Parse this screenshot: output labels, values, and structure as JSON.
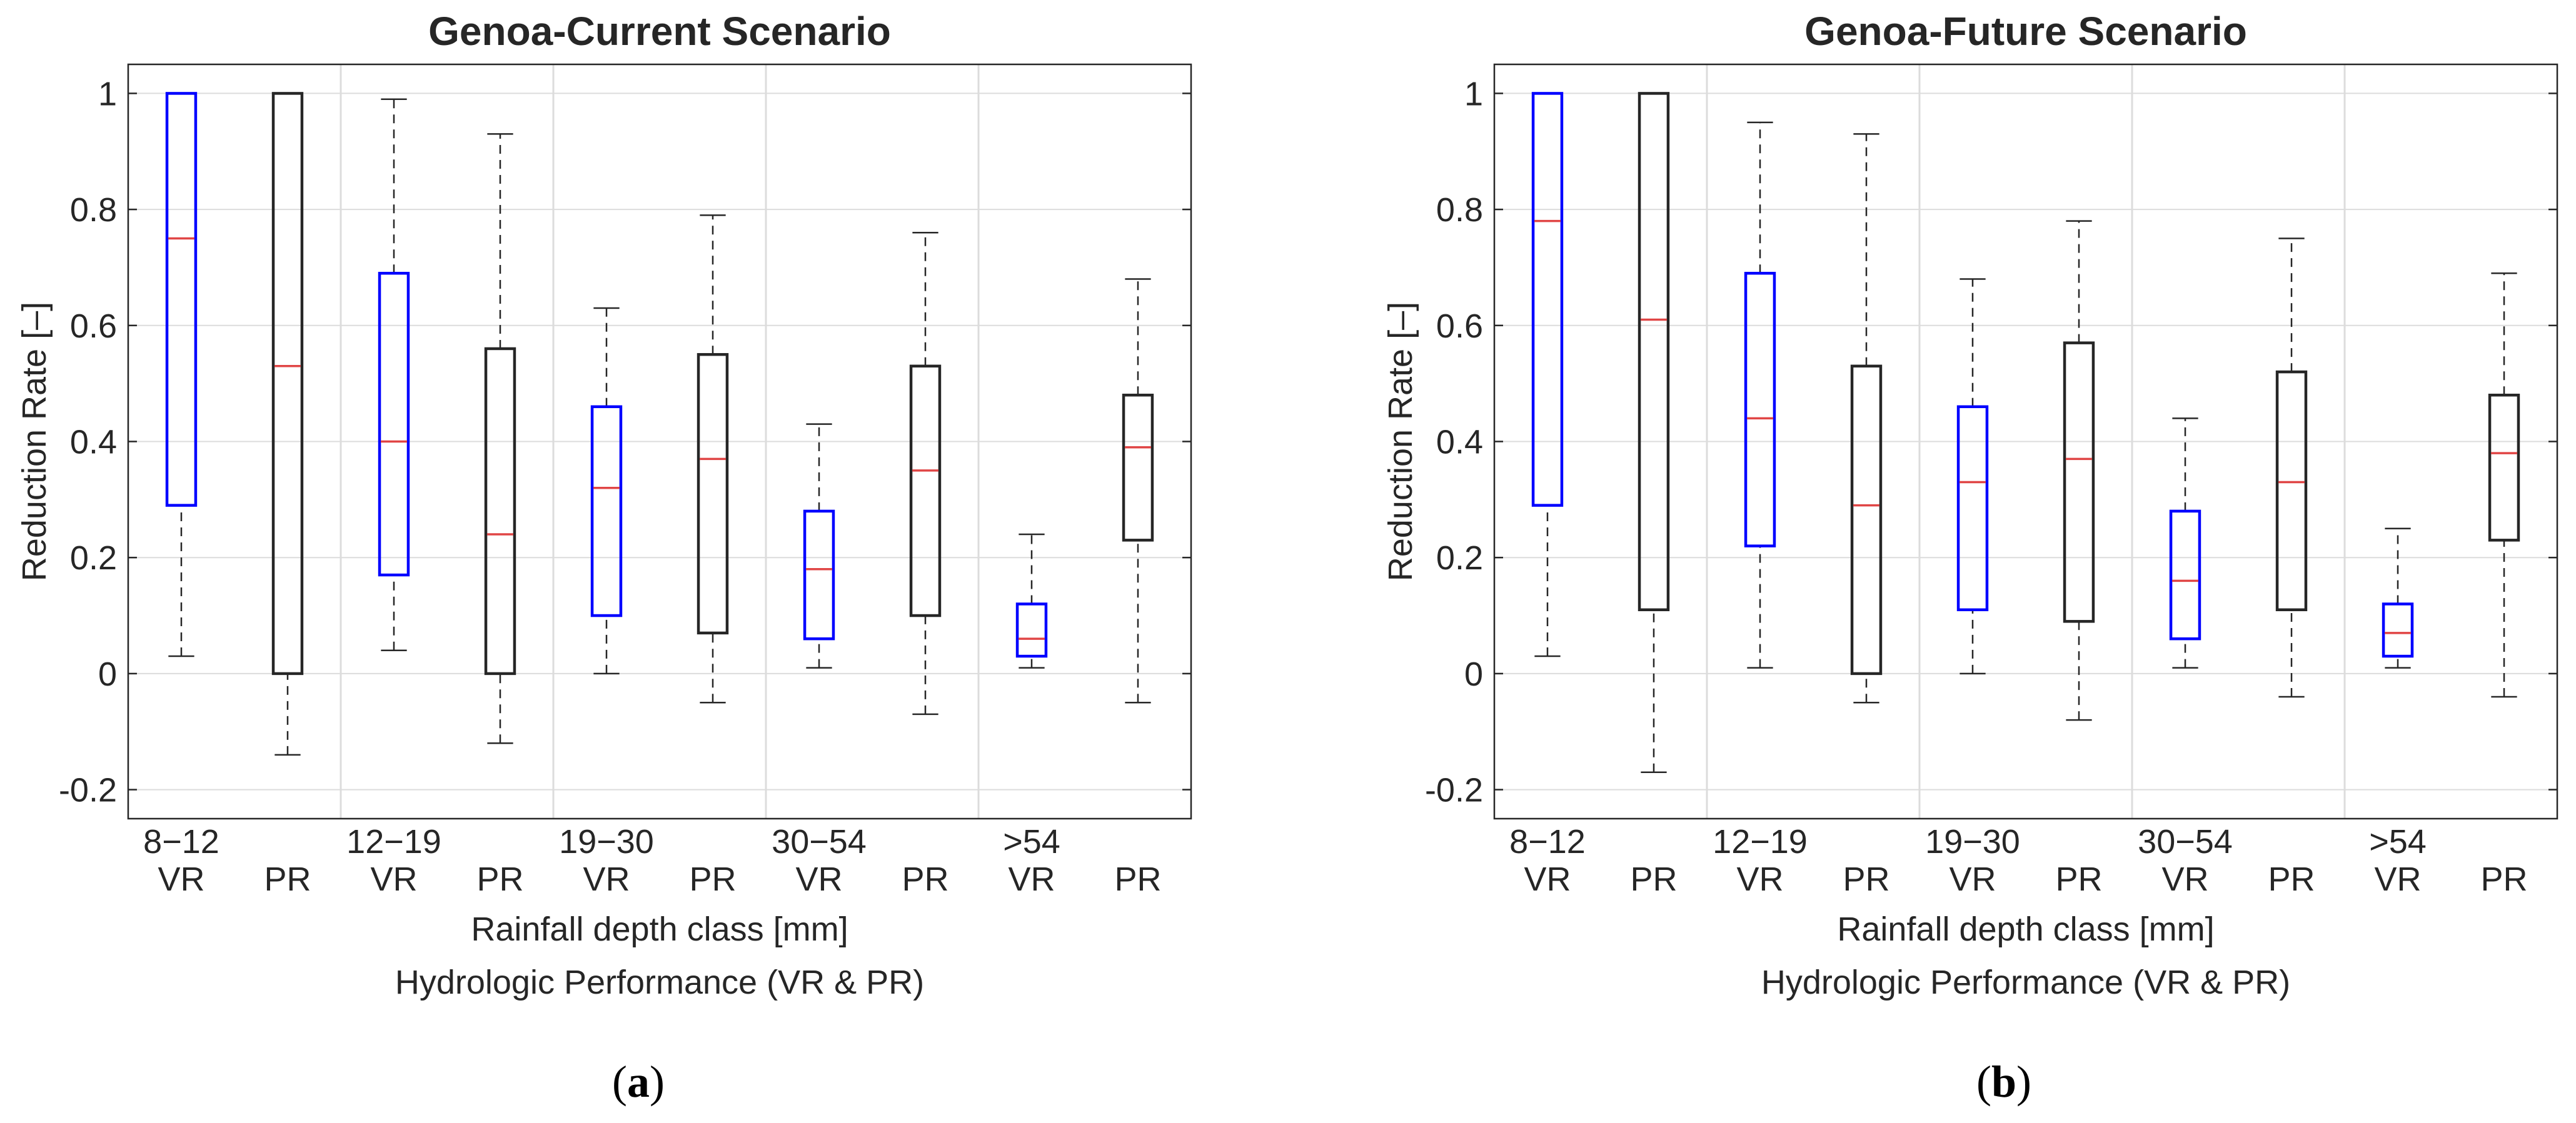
{
  "figure": {
    "captions": [
      {
        "open": "(",
        "letter": "a",
        "close": ")"
      },
      {
        "open": "(",
        "letter": "b",
        "close": ")"
      }
    ]
  },
  "colors": {
    "vr_box": "#0000ff",
    "pr_box": "#262626",
    "median": "#e04545",
    "whisker": "#262626",
    "grid": "#dcdcdc",
    "axes": "#262626"
  },
  "chart_data": [
    {
      "type": "boxplot",
      "title": "Genoa-Current Scenario",
      "ylabel": "Reduction Rate [–]",
      "xlabel": "Rainfall depth class [mm]",
      "xlabel2": "Hydrologic Performance (VR & PR)",
      "ylim": [
        -0.25,
        1.05
      ],
      "yticks": [
        -0.2,
        0,
        0.2,
        0.4,
        0.6,
        0.8,
        1
      ],
      "ytick_labels": [
        "-0.2",
        "0",
        "0.2",
        "0.4",
        "0.6",
        "0.8",
        "1"
      ],
      "grid": true,
      "groups": [
        {
          "class": "8−12",
          "boxes": [
            {
              "label": "VR",
              "min": 0.03,
              "q1": 0.29,
              "median": 0.75,
              "q3": 1.0,
              "max": 1.0
            },
            {
              "label": "PR",
              "min": -0.14,
              "q1": 0.0,
              "median": 0.53,
              "q3": 1.0,
              "max": 1.0
            }
          ]
        },
        {
          "class": "12−19",
          "boxes": [
            {
              "label": "VR",
              "min": 0.04,
              "q1": 0.17,
              "median": 0.4,
              "q3": 0.69,
              "max": 0.99
            },
            {
              "label": "PR",
              "min": -0.12,
              "q1": 0.0,
              "median": 0.24,
              "q3": 0.56,
              "max": 0.93
            }
          ]
        },
        {
          "class": "19−30",
          "boxes": [
            {
              "label": "VR",
              "min": 0.0,
              "q1": 0.1,
              "median": 0.32,
              "q3": 0.46,
              "max": 0.63
            },
            {
              "label": "PR",
              "min": -0.05,
              "q1": 0.07,
              "median": 0.37,
              "q3": 0.55,
              "max": 0.79
            }
          ]
        },
        {
          "class": "30−54",
          "boxes": [
            {
              "label": "VR",
              "min": 0.01,
              "q1": 0.06,
              "median": 0.18,
              "q3": 0.28,
              "max": 0.43
            },
            {
              "label": "PR",
              "min": -0.07,
              "q1": 0.1,
              "median": 0.35,
              "q3": 0.53,
              "max": 0.76
            }
          ]
        },
        {
          "class": ">54",
          "boxes": [
            {
              "label": "VR",
              "min": 0.01,
              "q1": 0.03,
              "median": 0.06,
              "q3": 0.12,
              "max": 0.24
            },
            {
              "label": "PR",
              "min": -0.05,
              "q1": 0.23,
              "median": 0.39,
              "q3": 0.48,
              "max": 0.68
            }
          ]
        }
      ]
    },
    {
      "type": "boxplot",
      "title": "Genoa-Future Scenario",
      "ylabel": "Reduction Rate [–]",
      "xlabel": "Rainfall depth class [mm]",
      "xlabel2": "Hydrologic Performance (VR & PR)",
      "ylim": [
        -0.25,
        1.05
      ],
      "yticks": [
        -0.2,
        0,
        0.2,
        0.4,
        0.6,
        0.8,
        1
      ],
      "ytick_labels": [
        "-0.2",
        "0",
        "0.2",
        "0.4",
        "0.6",
        "0.8",
        "1"
      ],
      "grid": true,
      "groups": [
        {
          "class": "8−12",
          "boxes": [
            {
              "label": "VR",
              "min": 0.03,
              "q1": 0.29,
              "median": 0.78,
              "q3": 1.0,
              "max": 1.0
            },
            {
              "label": "PR",
              "min": -0.17,
              "q1": 0.11,
              "median": 0.61,
              "q3": 1.0,
              "max": 1.0
            }
          ]
        },
        {
          "class": "12−19",
          "boxes": [
            {
              "label": "VR",
              "min": 0.01,
              "q1": 0.22,
              "median": 0.44,
              "q3": 0.69,
              "max": 0.95
            },
            {
              "label": "PR",
              "min": -0.05,
              "q1": 0.0,
              "median": 0.29,
              "q3": 0.53,
              "max": 0.93
            }
          ]
        },
        {
          "class": "19−30",
          "boxes": [
            {
              "label": "VR",
              "min": 0.0,
              "q1": 0.11,
              "median": 0.33,
              "q3": 0.46,
              "max": 0.68
            },
            {
              "label": "PR",
              "min": -0.08,
              "q1": 0.09,
              "median": 0.37,
              "q3": 0.57,
              "max": 0.78
            }
          ]
        },
        {
          "class": "30−54",
          "boxes": [
            {
              "label": "VR",
              "min": 0.01,
              "q1": 0.06,
              "median": 0.16,
              "q3": 0.28,
              "max": 0.44
            },
            {
              "label": "PR",
              "min": -0.04,
              "q1": 0.11,
              "median": 0.33,
              "q3": 0.52,
              "max": 0.75
            }
          ]
        },
        {
          "class": ">54",
          "boxes": [
            {
              "label": "VR",
              "min": 0.01,
              "q1": 0.03,
              "median": 0.07,
              "q3": 0.12,
              "max": 0.25
            },
            {
              "label": "PR",
              "min": -0.04,
              "q1": 0.23,
              "median": 0.38,
              "q3": 0.48,
              "max": 0.69
            }
          ]
        }
      ]
    }
  ]
}
